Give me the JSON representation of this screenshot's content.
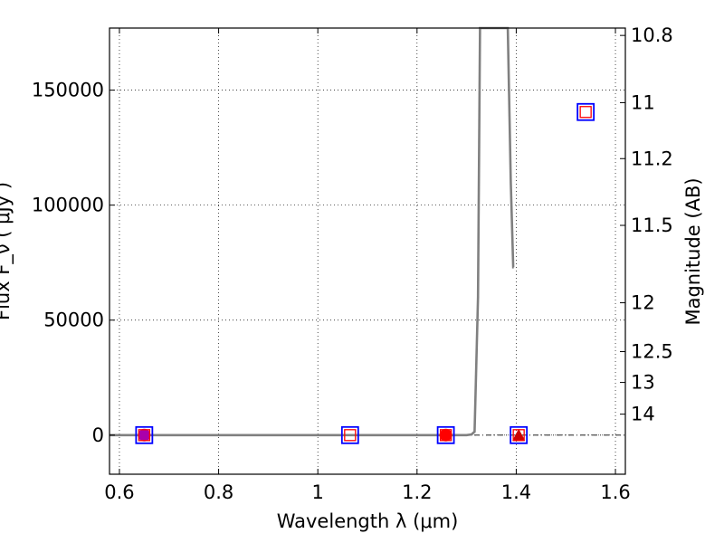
{
  "chart_data": {
    "type": "scatter",
    "title": "",
    "xlabel": "Wavelength  λ (μm)",
    "ylabel": "Flux  F_ν  ( μJy )",
    "ylabel_right": "Magnitude (AB)",
    "xlim": [
      0.58,
      1.62
    ],
    "ylim": [
      -17000,
      177000
    ],
    "grid": true,
    "x_ticks": [
      {
        "value": 0.6,
        "label": "0.6"
      },
      {
        "value": 0.8,
        "label": "0.8"
      },
      {
        "value": 1.0,
        "label": "1"
      },
      {
        "value": 1.2,
        "label": "1.2"
      },
      {
        "value": 1.4,
        "label": "1.4"
      },
      {
        "value": 1.6,
        "label": "1.6"
      }
    ],
    "y_ticks": [
      {
        "value": 0,
        "label": "0"
      },
      {
        "value": 50000,
        "label": "50000"
      },
      {
        "value": 100000,
        "label": "100000"
      },
      {
        "value": 150000,
        "label": "150000"
      }
    ],
    "right_ticks": [
      {
        "mag": 10.8,
        "label": "10.8"
      },
      {
        "mag": 11,
        "label": "11"
      },
      {
        "mag": 11.2,
        "label": "11.2"
      },
      {
        "mag": 11.5,
        "label": "11.5"
      },
      {
        "mag": 12,
        "label": "12"
      },
      {
        "mag": 12.5,
        "label": "12.5"
      },
      {
        "mag": 13,
        "label": "13"
      },
      {
        "mag": 14,
        "label": "14"
      }
    ],
    "model_curve": {
      "color": "#808080",
      "x": [
        0.58,
        1.0,
        1.3,
        1.31,
        1.316,
        1.323,
        1.327,
        1.36,
        1.383,
        1.389,
        1.394,
        1.395
      ],
      "y": [
        0,
        0,
        0,
        300,
        1500,
        60000,
        177000,
        177000,
        177000,
        110000,
        73000,
        73000
      ]
    },
    "observed_squares": {
      "color": "#0000ff",
      "x": [
        0.65,
        1.065,
        1.258,
        1.405,
        1.54
      ],
      "y": [
        0,
        0,
        0,
        0,
        140500
      ]
    },
    "model_squares": {
      "color": "#ff0000",
      "x": [
        0.65,
        1.065,
        1.258,
        1.405,
        1.54
      ],
      "y": [
        0,
        0,
        0,
        0,
        140500
      ]
    },
    "detections": {
      "x": [
        0.65,
        1.258
      ],
      "y": [
        0,
        0
      ],
      "colors": [
        "#aa00aa",
        "#ff0000"
      ]
    },
    "upper_limits": {
      "color": "#cc0000",
      "x": [
        1.405
      ],
      "y": [
        0
      ]
    }
  }
}
